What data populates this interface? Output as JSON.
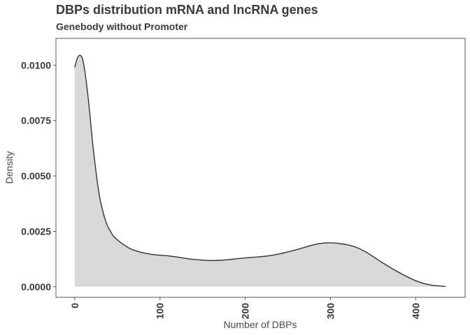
{
  "chart_data": {
    "type": "area",
    "title": "DBPs distribution mRNA and lncRNA genes",
    "subtitle": "Genebody without Promoter",
    "xlabel": "Number of DBPs",
    "ylabel": "Density",
    "xlim": [
      -22,
      458
    ],
    "ylim": [
      -0.00048,
      0.01121
    ],
    "x_ticks": [
      0,
      100,
      200,
      300,
      400
    ],
    "x_tick_labels": [
      "0",
      "100",
      "200",
      "300",
      "400"
    ],
    "y_ticks": [
      0.0,
      0.0025,
      0.005,
      0.0075,
      0.01
    ],
    "y_tick_labels": [
      "0.0000",
      "0.0025",
      "0.0050",
      "0.0075",
      "0.0100"
    ],
    "grid": false,
    "legend": "none",
    "fill_color": "#d9d9d9",
    "line_color": "#333333",
    "series": [
      {
        "x": [
          0,
          3,
          6,
          9,
          12,
          15,
          18,
          21,
          24,
          27,
          30,
          33,
          36,
          39,
          42,
          45,
          50,
          55,
          60,
          65,
          70,
          80,
          90,
          100,
          110,
          120,
          130,
          140,
          150,
          160,
          170,
          180,
          190,
          200,
          210,
          220,
          230,
          240,
          250,
          260,
          270,
          280,
          290,
          300,
          310,
          320,
          330,
          340,
          350,
          360,
          370,
          380,
          390,
          400,
          410,
          420,
          435
        ],
        "y": [
          0.0099,
          0.0103,
          0.01045,
          0.0103,
          0.0097,
          0.0088,
          0.0077,
          0.0065,
          0.0055,
          0.0046,
          0.0039,
          0.0034,
          0.003,
          0.0027,
          0.0025,
          0.0023,
          0.00212,
          0.00196,
          0.00183,
          0.00172,
          0.00164,
          0.00153,
          0.00146,
          0.00142,
          0.00139,
          0.00134,
          0.00128,
          0.00123,
          0.0012,
          0.00118,
          0.00119,
          0.00122,
          0.00126,
          0.0013,
          0.00133,
          0.00136,
          0.00141,
          0.00148,
          0.00157,
          0.00167,
          0.00178,
          0.00189,
          0.00196,
          0.00198,
          0.00195,
          0.00189,
          0.00178,
          0.0016,
          0.00136,
          0.00111,
          0.00087,
          0.00065,
          0.00045,
          0.00027,
          0.00014,
          6e-05,
          1e-05
        ]
      }
    ]
  }
}
